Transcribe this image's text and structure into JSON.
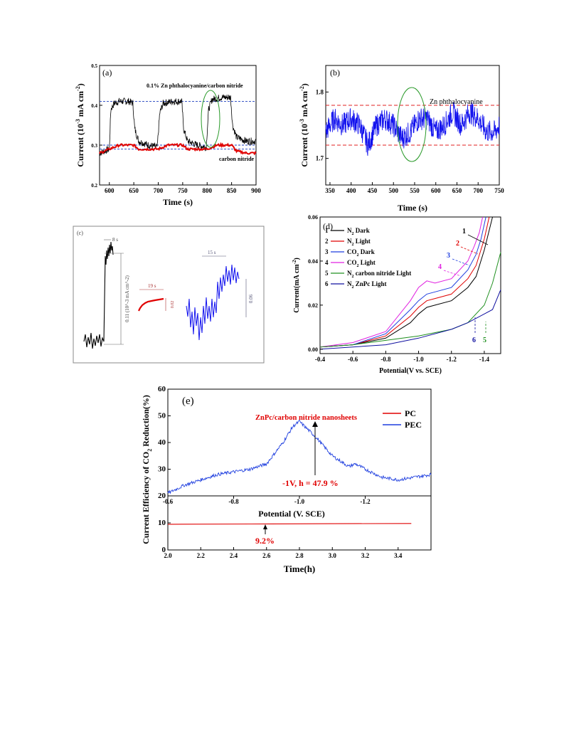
{
  "figure": {
    "panel_labels": [
      "(a)",
      "(b)",
      "(c)",
      "(d)",
      "(e)"
    ]
  },
  "chart_data": [
    {
      "panel": "(a)",
      "type": "line",
      "xlabel": "Time (s)",
      "ylabel": "Current (10^-3 mA cm^-2)",
      "ylabel_parts": {
        "base": "Current (10",
        "sup1": "-3",
        "mid": " mA cm",
        "sup2": "-2",
        "end": ")"
      },
      "xlim": [
        580,
        900
      ],
      "ylim": [
        0.2,
        0.5
      ],
      "xticks": [
        "600",
        "650",
        "700",
        "750",
        "800",
        "850",
        "900"
      ],
      "yticks": [
        "0.2",
        "0.3",
        "0.4",
        "0.5"
      ],
      "annotations": [
        "0.1% Zn phthalocyanine/carbon nitride",
        "carbon nitride"
      ],
      "reference_lines": [
        0.41,
        0.3,
        0.29
      ],
      "colors": {
        "zn": "#000000",
        "cn": "#e00000",
        "ref": "#1f3fbf",
        "ellipse": "#2a9a2a"
      },
      "series": [
        {
          "label": "0.1% Zn phthalocyanine/carbon nitride",
          "x": [
            580,
            600,
            603,
            610,
            620,
            640,
            648,
            652,
            660,
            680,
            698,
            703,
            710,
            730,
            748,
            752,
            760,
            780,
            798,
            803,
            810,
            830,
            848,
            852,
            860,
            880,
            900
          ],
          "y": [
            0.28,
            0.29,
            0.39,
            0.405,
            0.41,
            0.41,
            0.405,
            0.34,
            0.31,
            0.3,
            0.295,
            0.38,
            0.405,
            0.41,
            0.41,
            0.34,
            0.31,
            0.3,
            0.295,
            0.39,
            0.415,
            0.42,
            0.42,
            0.35,
            0.32,
            0.31,
            0.31
          ]
        },
        {
          "label": "carbon nitride",
          "x": [
            580,
            600,
            620,
            640,
            650,
            660,
            680,
            700,
            720,
            740,
            750,
            760,
            780,
            800,
            820,
            840,
            850,
            860,
            880,
            900
          ],
          "y": [
            0.28,
            0.29,
            0.3,
            0.3,
            0.3,
            0.29,
            0.29,
            0.29,
            0.3,
            0.3,
            0.3,
            0.29,
            0.29,
            0.29,
            0.3,
            0.3,
            0.3,
            0.285,
            0.28,
            0.28
          ]
        }
      ]
    },
    {
      "panel": "(b)",
      "type": "line",
      "xlabel": "Time (s)",
      "ylabel": "Current (10^-3 mA cm^-2)",
      "ylabel_parts": {
        "base": "Current (10",
        "sup1": "-3",
        "mid": " mA cm",
        "sup2": "-2",
        "end": ")"
      },
      "xlim": [
        340,
        750
      ],
      "ylim": [
        1.66,
        1.84
      ],
      "xticks": [
        "350",
        "400",
        "450",
        "500",
        "550",
        "600",
        "650",
        "700",
        "750"
      ],
      "yticks": [
        "1.7",
        "1.8"
      ],
      "annotations": [
        "Zn phthalocyanine"
      ],
      "reference_lines": [
        1.78,
        1.72
      ],
      "colors": {
        "line": "#1010ee",
        "ref": "#e02020",
        "ellipse": "#2a9a2a"
      },
      "series": [
        {
          "label": "Zn phthalocyanine",
          "x": [
            340,
            360,
            380,
            400,
            420,
            440,
            460,
            480,
            500,
            520,
            540,
            560,
            580,
            600,
            620,
            640,
            660,
            680,
            700,
            720,
            740,
            750
          ],
          "y": [
            1.74,
            1.76,
            1.75,
            1.76,
            1.75,
            1.72,
            1.75,
            1.76,
            1.75,
            1.73,
            1.74,
            1.76,
            1.76,
            1.74,
            1.75,
            1.77,
            1.75,
            1.77,
            1.76,
            1.74,
            1.74,
            1.75
          ]
        }
      ]
    },
    {
      "panel": "(c)",
      "type": "line",
      "annotations": [
        "8 s",
        "0.11 (10^-3 mA cm^-2)",
        "19 s",
        "0.02",
        "15 s",
        "0.06"
      ],
      "colors": {
        "black": "#000000",
        "red": "#e00000",
        "blue": "#1010ee"
      }
    },
    {
      "panel": "(d)",
      "type": "line",
      "xlabel": "Potential(V vs. SCE)",
      "ylabel": "Current(mA cm^-2)",
      "ylabel_parts": {
        "base": "Current(mA cm",
        "sup": "-2",
        "end": ")"
      },
      "xlim": [
        -0.4,
        -1.5
      ],
      "ylim": [
        -0.002,
        0.06
      ],
      "xticks": [
        "-0.4",
        "-0.6",
        "-0.8",
        "-1.0",
        "-1.2",
        "-1.4"
      ],
      "yticks": [
        "0.00",
        "0.02",
        "0.04",
        "0.06"
      ],
      "legend": [
        "N2 Dark",
        "N2 Light",
        "CO2 Dark",
        "CO2 Light",
        "N2 carbon nitride Light",
        "N2 ZnPc Light"
      ],
      "legend_numbers": [
        "1",
        "2",
        "3",
        "4",
        "5",
        "6"
      ],
      "legend_parts": [
        {
          "pre": "N",
          "sub": "2",
          "post": " Dark"
        },
        {
          "pre": "N",
          "sub": "2",
          "post": "  Light"
        },
        {
          "pre": "CO",
          "sub": "2",
          "post": " Dark"
        },
        {
          "pre": "CO",
          "sub": "2",
          "post": "  Light"
        },
        {
          "pre": "N",
          "sub": "2",
          "post": " carbon nitride  Light"
        },
        {
          "pre": "N",
          "sub": "2",
          "post": " ZnPc Light"
        }
      ],
      "series": [
        {
          "name": "N2 Dark",
          "color": "#000000",
          "x": [
            -0.4,
            -0.6,
            -0.8,
            -0.95,
            -1.0,
            -1.05,
            -1.1,
            -1.2,
            -1.3,
            -1.35,
            -1.4,
            -1.45
          ],
          "y": [
            0.001,
            0.002,
            0.005,
            0.012,
            0.016,
            0.019,
            0.02,
            0.022,
            0.028,
            0.033,
            0.045,
            0.06
          ]
        },
        {
          "name": "N2 Light",
          "color": "#e00000",
          "x": [
            -0.4,
            -0.6,
            -0.8,
            -0.95,
            -1.0,
            -1.05,
            -1.1,
            -1.2,
            -1.3,
            -1.35,
            -1.4,
            -1.43
          ],
          "y": [
            0.001,
            0.002,
            0.006,
            0.015,
            0.019,
            0.022,
            0.023,
            0.025,
            0.032,
            0.038,
            0.05,
            0.06
          ]
        },
        {
          "name": "CO2 Dark",
          "color": "#1f3fdf",
          "x": [
            -0.4,
            -0.6,
            -0.8,
            -0.95,
            -1.0,
            -1.05,
            -1.1,
            -1.2,
            -1.3,
            -1.35,
            -1.38,
            -1.41
          ],
          "y": [
            0.001,
            0.002,
            0.007,
            0.018,
            0.022,
            0.025,
            0.026,
            0.028,
            0.036,
            0.043,
            0.05,
            0.06
          ]
        },
        {
          "name": "CO2 Light",
          "color": "#e020e0",
          "x": [
            -0.4,
            -0.6,
            -0.8,
            -0.95,
            -1.0,
            -1.05,
            -1.1,
            -1.2,
            -1.3,
            -1.34,
            -1.37,
            -1.39
          ],
          "y": [
            0.001,
            0.003,
            0.008,
            0.022,
            0.028,
            0.031,
            0.03,
            0.032,
            0.04,
            0.047,
            0.053,
            0.06
          ]
        },
        {
          "name": "N2 carbon nitride Light",
          "color": "#209020",
          "x": [
            -0.4,
            -0.6,
            -0.8,
            -1.0,
            -1.2,
            -1.3,
            -1.4,
            -1.45,
            -1.5
          ],
          "y": [
            0.001,
            0.002,
            0.004,
            0.006,
            0.009,
            0.012,
            0.02,
            0.03,
            0.044
          ]
        },
        {
          "name": "N2 ZnPc Light",
          "color": "#1010a0",
          "x": [
            -0.4,
            -0.6,
            -0.8,
            -1.0,
            -1.2,
            -1.3,
            -1.4,
            -1.45,
            -1.5
          ],
          "y": [
            0.0,
            0.001,
            0.002,
            0.005,
            0.009,
            0.012,
            0.016,
            0.018,
            0.027
          ]
        }
      ]
    },
    {
      "panel": "(e)",
      "type": "line",
      "ylabel": "Current Efficiency of CO2 Reduction(%)",
      "ylabel_parts": {
        "base": "Current Efficiency of CO",
        "sub": "2",
        "end": " Reduction(%)"
      },
      "title": "ZnPc/carbon nitride nanosheets",
      "legend": [
        "PC",
        "PEC"
      ],
      "top": {
        "xlabel": "Potential (V. SCE)",
        "xlim": [
          -0.6,
          -1.4
        ],
        "ylim": [
          20,
          60
        ],
        "xticks": [
          "-0.6",
          "-0.8",
          "-1.0",
          "-1.2"
        ],
        "yticks": [
          "20",
          "30",
          "40",
          "50",
          "60"
        ],
        "annotation": "-1V, h = 47.9 %",
        "series": [
          {
            "name": "PEC",
            "color": "#1f3fdf",
            "x": [
              -0.6,
              -0.65,
              -0.7,
              -0.75,
              -0.8,
              -0.85,
              -0.9,
              -0.95,
              -0.98,
              -1.0,
              -1.05,
              -1.1,
              -1.15,
              -1.17,
              -1.2,
              -1.25,
              -1.3,
              -1.35,
              -1.4
            ],
            "y": [
              21,
              24,
              26,
              28,
              29,
              30,
              32,
              40,
              46,
              47.9,
              42,
              35,
              31,
              32,
              30,
              27,
              26,
              27,
              28
            ]
          }
        ]
      },
      "bottom": {
        "xlabel": "Time(h)",
        "xlim": [
          2.0,
          3.6
        ],
        "ylim": [
          0,
          20
        ],
        "xticks": [
          "2.0",
          "2.2",
          "2.4",
          "2.6",
          "2.8",
          "3.0",
          "3.2",
          "3.4"
        ],
        "yticks": [
          "0",
          "10"
        ],
        "annotation": "9.2%",
        "series": [
          {
            "name": "PC",
            "color": "#e00000",
            "x": [
              2.0,
              2.5,
              3.0,
              3.48
            ],
            "y": [
              9.5,
              9.6,
              9.7,
              9.8
            ]
          }
        ]
      }
    }
  ]
}
